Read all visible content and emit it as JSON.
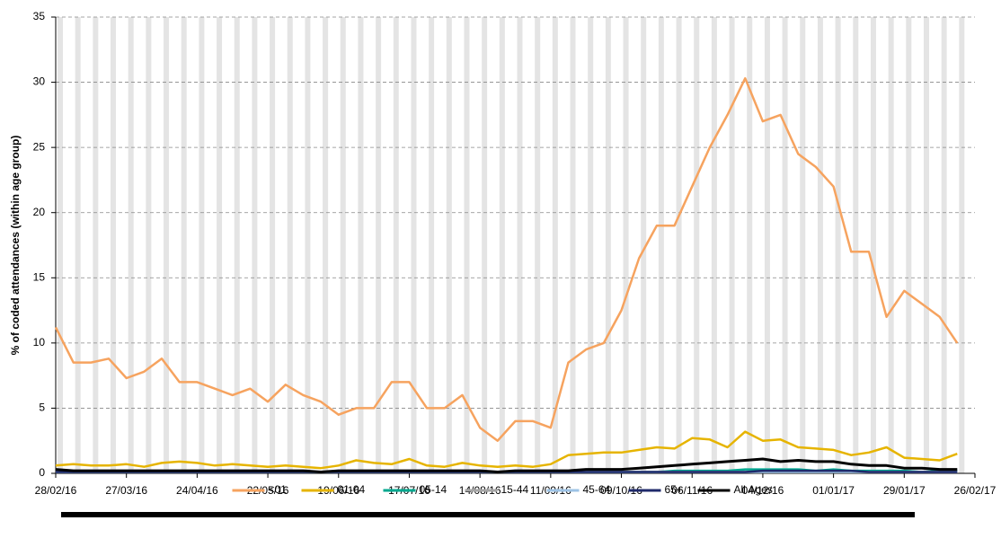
{
  "chart_data": {
    "type": "line",
    "y_label": "% of coded attendances (within age group)",
    "x": [
      "28/02/16",
      "06/03/16",
      "13/03/16",
      "20/03/16",
      "27/03/16",
      "03/04/16",
      "10/04/16",
      "17/04/16",
      "24/04/16",
      "01/05/16",
      "08/05/16",
      "15/05/16",
      "22/05/16",
      "29/05/16",
      "05/06/16",
      "12/06/16",
      "19/06/16",
      "26/06/16",
      "03/07/16",
      "10/07/16",
      "17/07/16",
      "24/07/16",
      "31/07/16",
      "07/08/16",
      "14/08/16",
      "21/08/16",
      "28/08/16",
      "04/09/16",
      "11/09/16",
      "18/09/16",
      "25/09/16",
      "02/10/16",
      "09/10/16",
      "16/10/16",
      "23/10/16",
      "30/10/16",
      "06/11/16",
      "13/11/16",
      "20/11/16",
      "27/11/16",
      "04/12/16",
      "11/12/16",
      "18/12/16",
      "25/12/16",
      "01/01/17",
      "08/01/17",
      "15/01/17",
      "22/01/17",
      "29/01/17",
      "05/02/17",
      "12/02/17",
      "19/02/17"
    ],
    "xlim": [
      "28/02/16",
      "26/02/17"
    ],
    "xticks": [
      "28/02/16",
      "27/03/16",
      "24/04/16",
      "22/05/16",
      "19/06/16",
      "17/07/16",
      "14/08/16",
      "11/09/16",
      "09/10/16",
      "06/11/16",
      "04/12/16",
      "01/01/17",
      "29/01/17",
      "26/02/17"
    ],
    "ylim": [
      0,
      35
    ],
    "yticks": [
      0,
      5,
      10,
      15,
      20,
      25,
      30,
      35
    ],
    "grid": true,
    "legend": "bottom",
    "series": [
      {
        "name": "<01",
        "color": "#f6a35f",
        "values": [
          11.2,
          8.5,
          8.5,
          8.8,
          7.3,
          7.8,
          8.8,
          7.0,
          7.0,
          6.5,
          6.0,
          6.5,
          5.5,
          6.8,
          6.0,
          5.5,
          4.5,
          5.0,
          5.0,
          7.0,
          7.0,
          5.0,
          5.0,
          6.0,
          3.5,
          2.5,
          4.0,
          4.0,
          3.5,
          8.5,
          9.5,
          10.0,
          12.5,
          16.5,
          19.0,
          19.0,
          22.0,
          25.0,
          27.5,
          30.3,
          27.0,
          27.5,
          24.5,
          23.5,
          22.0,
          17.0,
          17.0,
          12.0,
          14.0,
          13.0,
          12.0,
          10.0
        ]
      },
      {
        "name": "01-04",
        "color": "#e6b400",
        "values": [
          0.6,
          0.7,
          0.6,
          0.6,
          0.7,
          0.5,
          0.8,
          0.9,
          0.8,
          0.6,
          0.7,
          0.6,
          0.5,
          0.6,
          0.5,
          0.4,
          0.6,
          1.0,
          0.8,
          0.7,
          1.1,
          0.6,
          0.5,
          0.8,
          0.6,
          0.5,
          0.6,
          0.5,
          0.7,
          1.4,
          1.5,
          1.6,
          1.6,
          1.8,
          2.0,
          1.9,
          2.7,
          2.6,
          2.0,
          3.2,
          2.5,
          2.6,
          2.0,
          1.9,
          1.8,
          1.4,
          1.6,
          2.0,
          1.2,
          1.1,
          1.0,
          1.5
        ]
      },
      {
        "name": "05-14",
        "color": "#00a88f",
        "values": [
          0.1,
          0.1,
          0.1,
          0.1,
          0.1,
          0.1,
          0.1,
          0.1,
          0.1,
          0.1,
          0.1,
          0.1,
          0.1,
          0.1,
          0.1,
          0.1,
          0.1,
          0.1,
          0.1,
          0.1,
          0.1,
          0.1,
          0.1,
          0.1,
          0.1,
          0.1,
          0.1,
          0.1,
          0.1,
          0.1,
          0.1,
          0.1,
          0.1,
          0.1,
          0.1,
          0.2,
          0.2,
          0.2,
          0.2,
          0.3,
          0.3,
          0.3,
          0.3,
          0.2,
          0.3,
          0.2,
          0.2,
          0.2,
          0.2,
          0.1,
          0.2,
          0.2
        ]
      },
      {
        "name": "15-44",
        "color": "#a6a6a6",
        "values": [
          0.1,
          0.1,
          0.1,
          0.1,
          0.1,
          0.1,
          0.1,
          0.1,
          0.1,
          0.1,
          0.1,
          0.1,
          0.1,
          0.1,
          0.1,
          0.1,
          0.1,
          0.1,
          0.1,
          0.1,
          0.1,
          0.1,
          0.1,
          0.1,
          0.1,
          0.1,
          0.1,
          0.1,
          0.1,
          0.1,
          0.1,
          0.1,
          0.1,
          0.1,
          0.1,
          0.1,
          0.1,
          0.1,
          0.1,
          0.1,
          0.1,
          0.1,
          0.1,
          0.1,
          0.1,
          0.1,
          0.1,
          0.1,
          0.1,
          0.1,
          0.1,
          0.1
        ]
      },
      {
        "name": "45-64",
        "color": "#9dc3e6",
        "values": [
          0.1,
          0.1,
          0.1,
          0.1,
          0.1,
          0.1,
          0.1,
          0.1,
          0.1,
          0.1,
          0.1,
          0.1,
          0.1,
          0.1,
          0.1,
          0.1,
          0.1,
          0.1,
          0.1,
          0.1,
          0.1,
          0.1,
          0.1,
          0.1,
          0.1,
          0.1,
          0.1,
          0.1,
          0.1,
          0.1,
          0.1,
          0.1,
          0.1,
          0.1,
          0.1,
          0.1,
          0.1,
          0.1,
          0.1,
          0.1,
          0.1,
          0.1,
          0.1,
          0.1,
          0.1,
          0.1,
          0.1,
          0.1,
          0.1,
          0.1,
          0.1,
          0.1
        ]
      },
      {
        "name": "65+",
        "color": "#1f2a6b",
        "values": [
          0.1,
          0.1,
          0.1,
          0.1,
          0.1,
          0.1,
          0.1,
          0.1,
          0.1,
          0.1,
          0.1,
          0.1,
          0.1,
          0.1,
          0.1,
          0.1,
          0.1,
          0.1,
          0.1,
          0.1,
          0.1,
          0.1,
          0.1,
          0.1,
          0.1,
          0.1,
          0.1,
          0.1,
          0.1,
          0.1,
          0.1,
          0.1,
          0.1,
          0.1,
          0.1,
          0.1,
          0.1,
          0.1,
          0.1,
          0.1,
          0.2,
          0.2,
          0.2,
          0.2,
          0.2,
          0.2,
          0.1,
          0.1,
          0.1,
          0.1,
          0.1,
          0.1
        ]
      },
      {
        "name": "All Ages",
        "color": "#000000",
        "values": [
          0.3,
          0.2,
          0.2,
          0.2,
          0.2,
          0.2,
          0.2,
          0.2,
          0.2,
          0.2,
          0.2,
          0.2,
          0.2,
          0.2,
          0.2,
          0.1,
          0.2,
          0.2,
          0.2,
          0.2,
          0.2,
          0.2,
          0.2,
          0.2,
          0.2,
          0.1,
          0.2,
          0.2,
          0.2,
          0.2,
          0.3,
          0.3,
          0.3,
          0.4,
          0.5,
          0.6,
          0.7,
          0.8,
          0.9,
          1.0,
          1.1,
          0.9,
          1.0,
          0.9,
          0.9,
          0.7,
          0.6,
          0.6,
          0.4,
          0.4,
          0.3,
          0.3
        ]
      }
    ]
  }
}
